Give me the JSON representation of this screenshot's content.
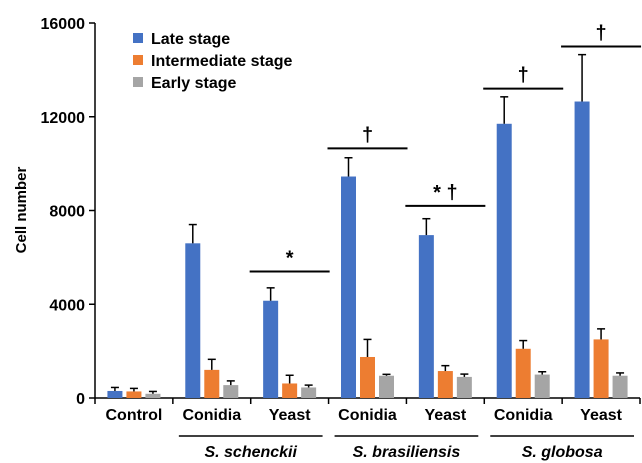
{
  "chart_data": {
    "type": "bar",
    "xlabel": "",
    "ylabel": "Cell number",
    "ylim": [
      0,
      16000
    ],
    "yticks": [
      "0",
      "4000",
      "8000",
      "12000",
      "16000"
    ],
    "categories": [
      "Control",
      "Conidia",
      "Yeast",
      "Conidia",
      "Yeast",
      "Conidia",
      "Yeast"
    ],
    "groups": [
      {
        "label": "S. schenckii",
        "categories": [
          1,
          2
        ]
      },
      {
        "label": "S. brasiliensis",
        "categories": [
          3,
          4
        ]
      },
      {
        "label": "S. globosa",
        "categories": [
          5,
          6
        ]
      }
    ],
    "series": [
      {
        "name": "Late stage",
        "color": "#4472C4",
        "values": [
          300,
          6600,
          4150,
          9450,
          6950,
          11700,
          12650
        ],
        "errors": [
          150,
          800,
          550,
          800,
          700,
          1150,
          2000
        ]
      },
      {
        "name": "Intermediate stage",
        "color": "#ED7D31",
        "values": [
          280,
          1200,
          620,
          1750,
          1150,
          2100,
          2500
        ],
        "errors": [
          130,
          450,
          350,
          750,
          230,
          350,
          450
        ]
      },
      {
        "name": "Early stage",
        "color": "#A5A5A5",
        "values": [
          180,
          550,
          450,
          950,
          900,
          1000,
          950
        ],
        "errors": [
          100,
          180,
          100,
          60,
          120,
          120,
          120
        ]
      }
    ],
    "annotations": [
      {
        "category": 2,
        "text": "*",
        "y": 5400
      },
      {
        "category": 3,
        "text": "†",
        "y": 10650
      },
      {
        "category": 4,
        "text": "* †",
        "y": 8200
      },
      {
        "category": 5,
        "text": "†",
        "y": 13200
      },
      {
        "category": 6,
        "text": "†",
        "y": 15000
      }
    ],
    "legend_placement": "top-left",
    "grid": false
  }
}
